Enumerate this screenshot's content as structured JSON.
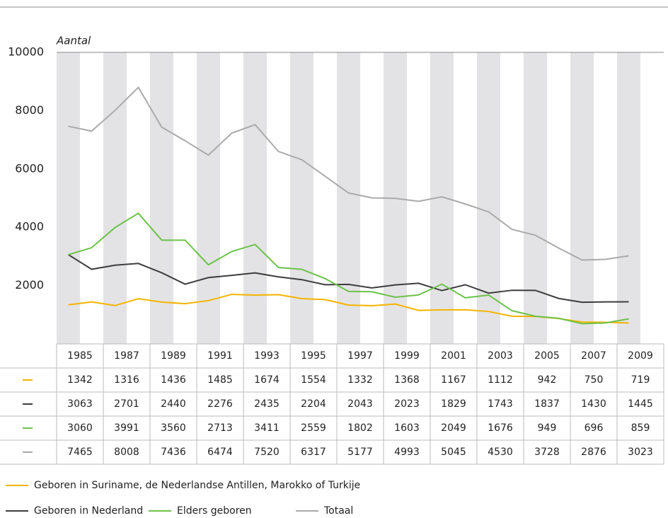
{
  "chart_data": {
    "type": "line",
    "y_label": "Aantal",
    "categories": [
      "1985",
      null,
      "1987",
      null,
      "1989",
      null,
      "1991",
      null,
      "1993",
      null,
      "1995",
      null,
      "1997",
      null,
      "1999",
      null,
      "2001",
      null,
      "2003",
      null,
      "2005",
      null,
      "2007",
      null,
      "2009"
    ],
    "ylim": [
      0,
      10000
    ],
    "yticks": [
      2000,
      4000,
      6000,
      8000,
      10000
    ],
    "series": [
      {
        "name": "Geboren in Suriname, de Nederlandse Antillen, Marokko of Turkije",
        "color": "#f5b400",
        "values": [
          1342,
          1440,
          1316,
          1550,
          1436,
          1380,
          1485,
          1700,
          1674,
          1690,
          1554,
          1520,
          1332,
          1310,
          1368,
          1150,
          1167,
          1170,
          1112,
          950,
          942,
          870,
          750,
          740,
          719
        ]
      },
      {
        "name": "Geboren in Nederland",
        "color": "#3d3d3d",
        "values": [
          3063,
          2560,
          2701,
          2760,
          2440,
          2050,
          2276,
          2350,
          2435,
          2300,
          2204,
          2030,
          2043,
          1920,
          2023,
          2080,
          1829,
          2030,
          1743,
          1840,
          1837,
          1560,
          1430,
          1440,
          1445
        ]
      },
      {
        "name": "Elders geboren",
        "color": "#6cc24a",
        "values": [
          3060,
          3300,
          3991,
          4480,
          3560,
          3560,
          2713,
          3170,
          3411,
          2620,
          2559,
          2240,
          1802,
          1790,
          1603,
          1680,
          2049,
          1580,
          1676,
          1140,
          949,
          880,
          696,
          720,
          859
        ]
      },
      {
        "name": "Totaal",
        "color": "#aaaaaa",
        "values": [
          7465,
          7300,
          8008,
          8800,
          7436,
          6970,
          6474,
          7230,
          7520,
          6600,
          6317,
          5750,
          5177,
          5010,
          4993,
          4890,
          5045,
          4800,
          4530,
          3930,
          3728,
          3290,
          2876,
          2900,
          3023
        ]
      }
    ]
  }
}
